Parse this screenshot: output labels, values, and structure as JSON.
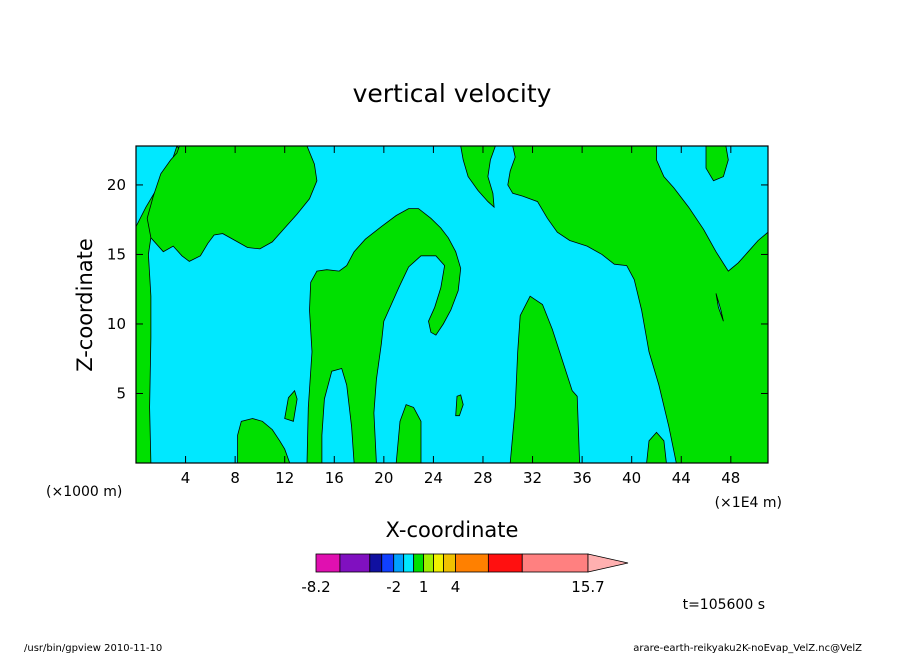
{
  "chart_data": {
    "type": "heatmap",
    "title": "vertical velocity",
    "xlabel": "X-coordinate",
    "ylabel": "Z-coordinate",
    "x_unit_left": "(×1000 m)",
    "x_unit_right": "(×1E4 m)",
    "xlim": [
      0,
      51
    ],
    "ylim": [
      0,
      22.8
    ],
    "x_ticks": [
      4,
      8,
      12,
      16,
      20,
      24,
      28,
      32,
      36,
      40,
      44,
      48
    ],
    "y_ticks": [
      5,
      10,
      15,
      20
    ],
    "time_label": "t=105600 s",
    "colorbar": {
      "tick_labels": [
        {
          "label": "-8.2",
          "value": -8.2
        },
        {
          "label": "-2",
          "value": -2
        },
        {
          "label": "1",
          "value": 1
        },
        {
          "label": "4",
          "value": 4
        },
        {
          "label": "15.7",
          "value": 15.7
        }
      ],
      "segments": [
        {
          "from": -8.2,
          "to": -6.2,
          "color": "#e010b0"
        },
        {
          "from": -6.2,
          "to": -4.0,
          "color": "#8010c0"
        },
        {
          "from": -4.0,
          "to": -3.0,
          "color": "#1010a0"
        },
        {
          "from": -3.0,
          "to": -2.0,
          "color": "#1040ff"
        },
        {
          "from": -2.0,
          "to": -1.0,
          "color": "#00a0ff"
        },
        {
          "from": -1.0,
          "to": 0.0,
          "color": "#00e8ff"
        },
        {
          "from": 0.0,
          "to": 1.0,
          "color": "#00e000"
        },
        {
          "from": 1.0,
          "to": 2.0,
          "color": "#a0f000"
        },
        {
          "from": 2.0,
          "to": 3.0,
          "color": "#f0f000"
        },
        {
          "from": 3.0,
          "to": 4.0,
          "color": "#f0c000"
        },
        {
          "from": 4.0,
          "to": 6.8,
          "color": "#ff8000"
        },
        {
          "from": 6.8,
          "to": 9.4,
          "color": "#ff1010"
        },
        {
          "from": 9.4,
          "to": 15.7,
          "color": "#ff8080"
        }
      ],
      "overflow_color": "#ffb0b0"
    },
    "field_colors": {
      "negative": "#00e8ff",
      "positive": "#00e000"
    },
    "positive_regions": [
      {
        "name": "left-edge-region",
        "points": [
          [
            0,
            0
          ],
          [
            0,
            17
          ],
          [
            0.8,
            18.4
          ],
          [
            1.6,
            19.6
          ],
          [
            2.3,
            20.6
          ],
          [
            3,
            22
          ],
          [
            3.3,
            22.8
          ],
          [
            0,
            22.8
          ],
          [
            0,
            22.8
          ],
          [
            3.3,
            22.8
          ],
          [
            4,
            22
          ],
          [
            3.2,
            21
          ],
          [
            2.6,
            19.8
          ],
          [
            2,
            18.6
          ],
          [
            1.3,
            16.8
          ],
          [
            1,
            15
          ],
          [
            1.2,
            12
          ],
          [
            1.2,
            9
          ],
          [
            1.1,
            4
          ],
          [
            1.2,
            0
          ]
        ]
      },
      {
        "name": "main-left-region",
        "points": [
          [
            3.5,
            22.8
          ],
          [
            3.3,
            22.3
          ],
          [
            2.8,
            21.8
          ],
          [
            2.0,
            20.8
          ],
          [
            1.4,
            19.2
          ],
          [
            0.9,
            17.6
          ],
          [
            1.2,
            16.2
          ],
          [
            2.2,
            15.2
          ],
          [
            3.0,
            15.6
          ],
          [
            3.7,
            14.9
          ],
          [
            4.3,
            14.5
          ],
          [
            5.2,
            14.9
          ],
          [
            5.8,
            15.8
          ],
          [
            6.3,
            16.4
          ],
          [
            7.0,
            16.5
          ],
          [
            8.0,
            16.0
          ],
          [
            9.0,
            15.5
          ],
          [
            10.0,
            15.4
          ],
          [
            11.0,
            15.9
          ],
          [
            12.0,
            16.9
          ],
          [
            13.0,
            17.9
          ],
          [
            14.0,
            19.0
          ],
          [
            14.6,
            20.3
          ],
          [
            14.4,
            21.5
          ],
          [
            13.8,
            22.8
          ]
        ]
      },
      {
        "name": "blob-top-left-1",
        "points": [
          [
            3.2,
            22.8
          ],
          [
            3.2,
            22.8
          ]
        ]
      },
      {
        "name": "center-column",
        "points": [
          [
            13.8,
            0
          ],
          [
            13.9,
            4
          ],
          [
            14.2,
            8
          ],
          [
            14.0,
            11
          ],
          [
            14.1,
            13
          ],
          [
            14.6,
            13.8
          ],
          [
            15.4,
            13.9
          ],
          [
            16.4,
            13.8
          ],
          [
            17.0,
            14.2
          ],
          [
            17.6,
            15.2
          ],
          [
            18.5,
            16.1
          ],
          [
            19.8,
            17.0
          ],
          [
            21.0,
            17.8
          ],
          [
            22.0,
            18.3
          ],
          [
            22.8,
            18.3
          ],
          [
            23.8,
            17.6
          ],
          [
            24.6,
            16.9
          ],
          [
            25.2,
            16.2
          ],
          [
            25.8,
            15.2
          ],
          [
            26.2,
            14.0
          ],
          [
            26.0,
            12.4
          ],
          [
            25.4,
            11.0
          ],
          [
            24.8,
            10.0
          ],
          [
            24.2,
            9.2
          ],
          [
            23.8,
            9.4
          ],
          [
            23.6,
            10.2
          ],
          [
            24.1,
            11.2
          ],
          [
            24.6,
            12.6
          ],
          [
            24.9,
            14.2
          ],
          [
            24.2,
            14.9
          ],
          [
            23.0,
            14.9
          ],
          [
            22.0,
            14.1
          ],
          [
            21.2,
            12.6
          ],
          [
            20.6,
            11.4
          ],
          [
            20.0,
            10.2
          ],
          [
            19.8,
            8.6
          ],
          [
            19.4,
            6.0
          ],
          [
            19.2,
            3.6
          ],
          [
            19.4,
            0
          ],
          [
            17.6,
            0
          ],
          [
            17.4,
            2.6
          ],
          [
            17.0,
            5.6
          ],
          [
            16.6,
            6.8
          ],
          [
            15.8,
            6.6
          ],
          [
            15.2,
            4.6
          ],
          [
            15.0,
            2.0
          ],
          [
            15.0,
            0
          ]
        ]
      },
      {
        "name": "blob-8-12",
        "points": [
          [
            8.2,
            0
          ],
          [
            8.2,
            2.0
          ],
          [
            8.5,
            3.0
          ],
          [
            9.4,
            3.2
          ],
          [
            10.2,
            3.0
          ],
          [
            11.0,
            2.4
          ],
          [
            11.6,
            1.6
          ],
          [
            12.0,
            1.0
          ],
          [
            12.4,
            0
          ]
        ]
      },
      {
        "name": "blob-12-13",
        "points": [
          [
            12.0,
            3.2
          ],
          [
            12.3,
            4.7
          ],
          [
            12.8,
            5.2
          ],
          [
            13.0,
            4.6
          ],
          [
            12.7,
            3.0
          ]
        ]
      },
      {
        "name": "blob-21-23",
        "points": [
          [
            21.0,
            0
          ],
          [
            21.3,
            3.0
          ],
          [
            21.8,
            4.2
          ],
          [
            22.4,
            4.0
          ],
          [
            23.0,
            3.0
          ],
          [
            23.0,
            0
          ]
        ]
      },
      {
        "name": "blob-26",
        "points": [
          [
            25.8,
            3.4
          ],
          [
            25.9,
            4.8
          ],
          [
            26.2,
            4.9
          ],
          [
            26.4,
            4.2
          ],
          [
            26.1,
            3.4
          ]
        ]
      },
      {
        "name": "blob-top-center",
        "points": [
          [
            26.2,
            22.8
          ],
          [
            26.4,
            21.8
          ],
          [
            26.8,
            20.6
          ],
          [
            27.6,
            19.6
          ],
          [
            28.4,
            18.8
          ],
          [
            28.9,
            18.4
          ],
          [
            28.8,
            19.4
          ],
          [
            28.4,
            20.6
          ],
          [
            28.6,
            21.8
          ],
          [
            29.0,
            22.8
          ]
        ]
      },
      {
        "name": "blob-31-35",
        "points": [
          [
            30.2,
            0
          ],
          [
            30.6,
            4
          ],
          [
            30.8,
            8
          ],
          [
            31.0,
            10.6
          ],
          [
            31.8,
            12.0
          ],
          [
            32.8,
            11.4
          ],
          [
            33.6,
            9.6
          ],
          [
            34.4,
            7.4
          ],
          [
            35.2,
            5.2
          ],
          [
            35.6,
            4.8
          ],
          [
            35.8,
            0
          ]
        ]
      },
      {
        "name": "right-main-region",
        "points": [
          [
            30.4,
            22.8
          ],
          [
            30.6,
            22.0
          ],
          [
            30.2,
            21.0
          ],
          [
            30.0,
            20.0
          ],
          [
            30.4,
            19.4
          ],
          [
            31.2,
            19.2
          ],
          [
            32.4,
            18.8
          ],
          [
            33.2,
            17.6
          ],
          [
            34.0,
            16.6
          ],
          [
            35.0,
            16.0
          ],
          [
            36.4,
            15.6
          ],
          [
            37.6,
            15.0
          ],
          [
            38.6,
            14.3
          ],
          [
            39.6,
            14.2
          ],
          [
            40.2,
            13.2
          ],
          [
            40.8,
            11.0
          ],
          [
            41.4,
            8.0
          ],
          [
            42.2,
            5.6
          ],
          [
            43.0,
            2.6
          ],
          [
            43.6,
            0
          ],
          [
            51,
            0
          ],
          [
            51,
            16.6
          ],
          [
            50.2,
            16.0
          ],
          [
            49.4,
            15.2
          ],
          [
            48.6,
            14.4
          ],
          [
            47.8,
            13.8
          ],
          [
            46.8,
            15.2
          ],
          [
            45.8,
            16.8
          ],
          [
            44.6,
            18.4
          ],
          [
            43.4,
            19.8
          ],
          [
            42.6,
            20.6
          ],
          [
            42.0,
            21.8
          ],
          [
            42.0,
            22.8
          ]
        ]
      },
      {
        "name": "blob-41-43",
        "points": [
          [
            41.2,
            0
          ],
          [
            41.4,
            1.6
          ],
          [
            42.0,
            2.2
          ],
          [
            42.6,
            1.6
          ],
          [
            42.8,
            0
          ]
        ]
      },
      {
        "name": "blob-top-right",
        "points": [
          [
            46.0,
            22.8
          ],
          [
            46.0,
            21.2
          ],
          [
            46.6,
            20.3
          ],
          [
            47.4,
            20.6
          ],
          [
            47.8,
            21.8
          ],
          [
            47.6,
            22.8
          ]
        ]
      }
    ],
    "negative_holes": [
      {
        "name": "hole-47",
        "points": [
          [
            46.8,
            12.2
          ],
          [
            47.2,
            11.0
          ],
          [
            47.4,
            10.2
          ],
          [
            47.0,
            11.2
          ]
        ]
      }
    ]
  },
  "footer": {
    "left": "/usr/bin/gpview  2010-11-10",
    "right": "arare-earth-reikyaku2K-noEvap_VelZ.nc@VelZ"
  }
}
